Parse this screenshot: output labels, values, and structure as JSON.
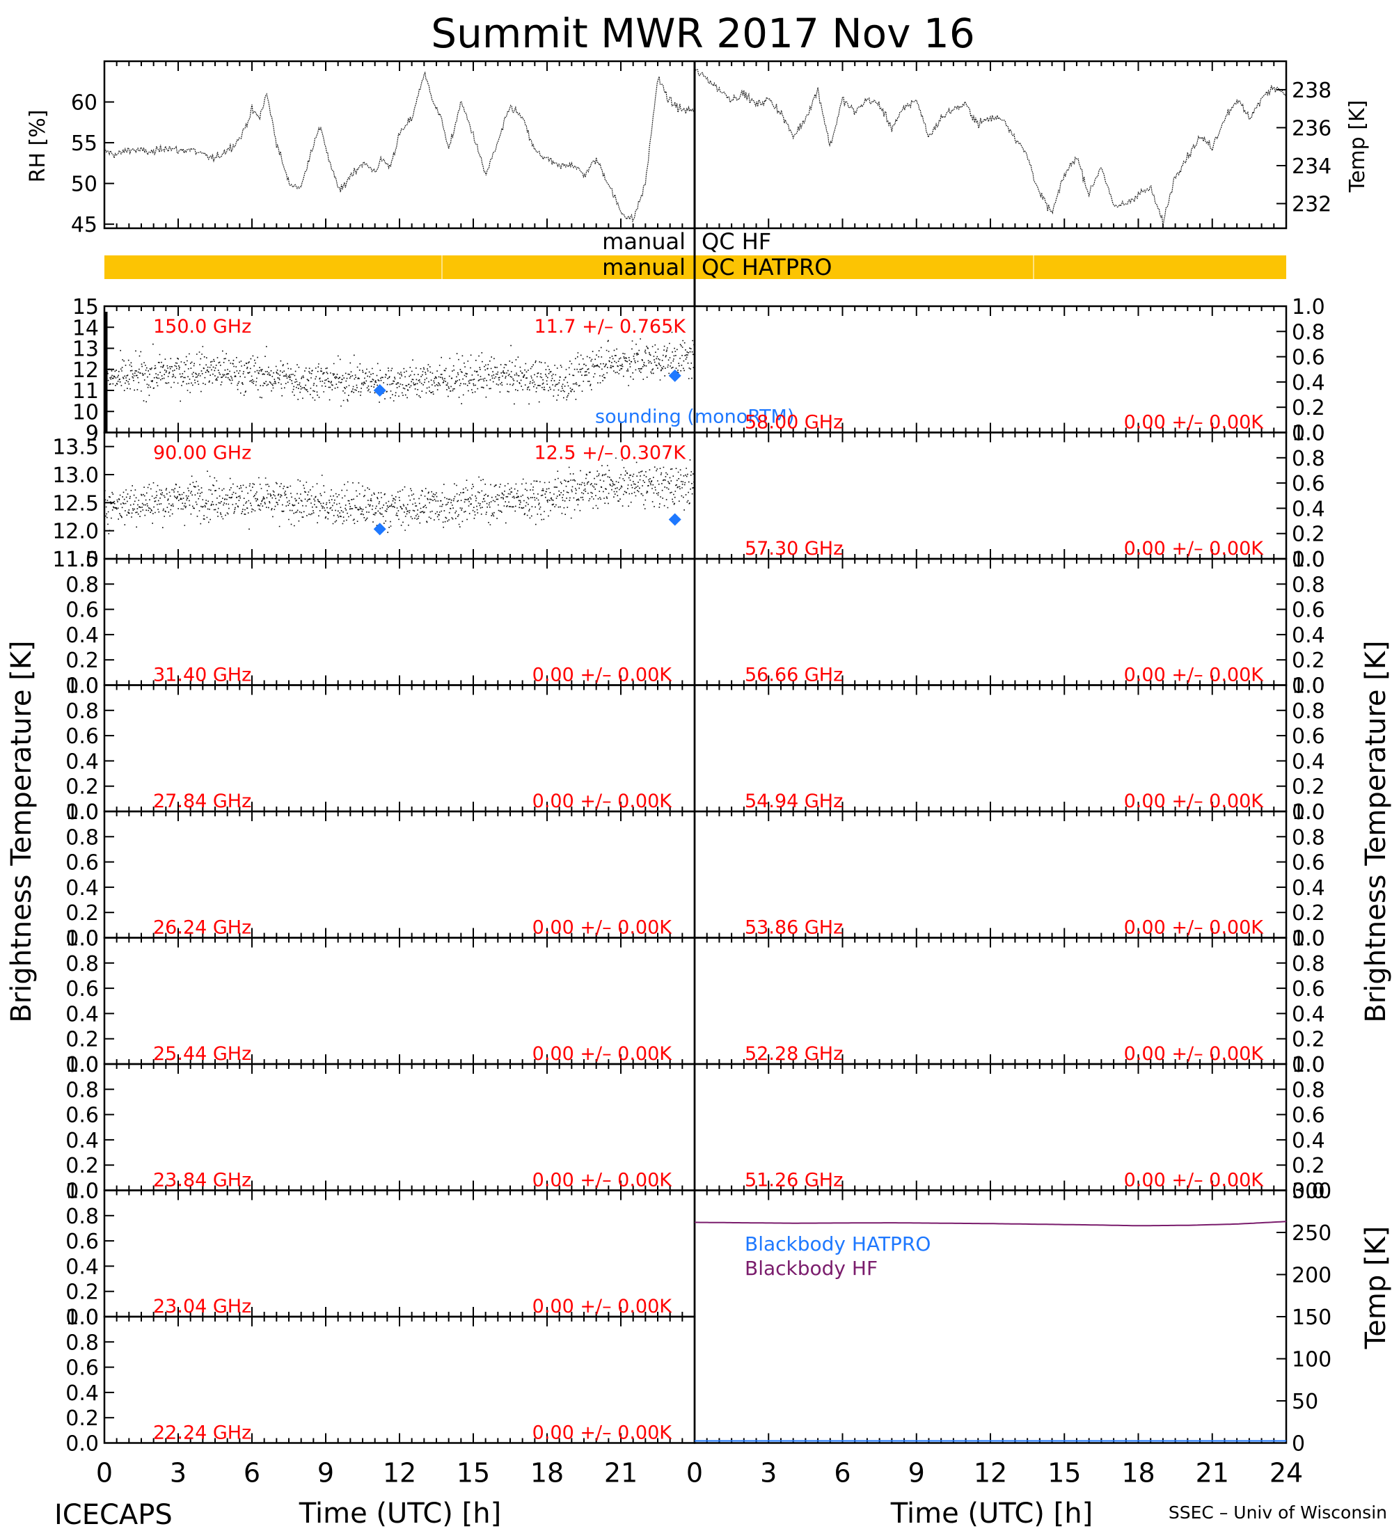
{
  "title": "Summit MWR 2017 Nov 16",
  "footer": {
    "left": "ICECAPS",
    "right": "SSEC – Univ of Wisconsin",
    "xlabel_left": "Time (UTC) [h]",
    "xlabel_right": "Time (UTC) [h]"
  },
  "colors": {
    "axis": "#000000",
    "label_red": "#ff0000",
    "sounding_blue": "#1e78ff",
    "qc_bar": "#fcc403",
    "blackbody_hatpro": "#1e78ff",
    "blackbody_hf": "#7a1c6c"
  },
  "qc": {
    "hf_label_left": "manual",
    "hf_label_right": "QC HF",
    "hatpro_label_left": "manual",
    "hatpro_label_right": "QC HATPRO"
  },
  "chart_data": {
    "type": "line",
    "x_ticks": [
      0,
      3,
      6,
      9,
      12,
      15,
      18,
      21,
      24
    ],
    "x_tick_labels_left": [
      "0",
      "3",
      "6",
      "9",
      "12",
      "15",
      "18",
      "21"
    ],
    "x_tick_labels_right": [
      "0",
      "3",
      "6",
      "9",
      "12",
      "15",
      "18",
      "21",
      "24"
    ],
    "xlim": [
      0,
      24
    ],
    "met": {
      "rh_ylabel": "RH [%]",
      "rh_ylim": [
        44.5,
        65
      ],
      "rh_ticks": [
        "45",
        "50",
        "55",
        "60"
      ],
      "rh_x": [
        0,
        0.5,
        1,
        1.5,
        2,
        2.5,
        3,
        3.5,
        4,
        4.5,
        5,
        5.3,
        5.6,
        6,
        6.3,
        6.6,
        7,
        7.5,
        8,
        8.4,
        8.8,
        9.2,
        9.6,
        10,
        10.5,
        11,
        11.3,
        11.6,
        12,
        12.5,
        13,
        13.4,
        13.8,
        14,
        14.5,
        15,
        15.5,
        16,
        16.5,
        17,
        17.5,
        18,
        18.5,
        19,
        19.5,
        20,
        20.5,
        21,
        21.5,
        22,
        22.5,
        23,
        23.5
      ],
      "rh_y": [
        54,
        53.5,
        54.2,
        54,
        53.8,
        54.5,
        54,
        54.2,
        53.5,
        53,
        54.2,
        54.8,
        56,
        59,
        58,
        61,
        55,
        50,
        49.5,
        54,
        57,
        52,
        49,
        51,
        52.5,
        51.5,
        53,
        52,
        56,
        58,
        63.5,
        60,
        57,
        54,
        60,
        56,
        51,
        55,
        59.5,
        58,
        54,
        53,
        52,
        52.5,
        51,
        53,
        50,
        46.5,
        45.5,
        50,
        63,
        60,
        59
      ],
      "temp_ylabel": "Temp [K]",
      "temp_ylim": [
        230.7,
        239.5
      ],
      "temp_ticks": [
        "232",
        "234",
        "236",
        "238"
      ],
      "temp_x": [
        0,
        0.5,
        1,
        1.5,
        2,
        2.5,
        3,
        3.5,
        4,
        4.5,
        5,
        5.5,
        6,
        6.5,
        7,
        7.5,
        8,
        8.5,
        9,
        9.5,
        10,
        10.5,
        11,
        11.5,
        12,
        12.5,
        13,
        13.5,
        14,
        14.5,
        15,
        15.5,
        16,
        16.5,
        17,
        17.5,
        18,
        18.5,
        19,
        19.5,
        20,
        20.5,
        21,
        21.5,
        22,
        22.5,
        23,
        23.5,
        24
      ],
      "temp_y": [
        239,
        238.6,
        238,
        237.5,
        237.8,
        237.2,
        237.5,
        236.8,
        235.5,
        236.5,
        238,
        235,
        237.5,
        236.8,
        237.5,
        237.2,
        236,
        237,
        237.5,
        235.5,
        236.5,
        237,
        237.2,
        236.2,
        236.5,
        236.5,
        235.5,
        234.5,
        232.5,
        231.5,
        233.5,
        234.5,
        232.5,
        234,
        231.8,
        232,
        232.5,
        232.8,
        231,
        233.5,
        234.5,
        235.5,
        235,
        236.5,
        237.5,
        236.5,
        237.5,
        238.2,
        237.8
      ]
    },
    "ticks_0_1": [
      "0.0",
      "0.2",
      "0.4",
      "0.6",
      "0.8",
      "1.0"
    ],
    "left_panels": [
      {
        "freq": "150.0 GHz",
        "stat": "11.7 +/– 0.765K",
        "ylim": [
          9,
          15
        ],
        "ticks": [
          "9",
          "10",
          "11",
          "12",
          "13",
          "14",
          "15"
        ],
        "mean": 11.7,
        "std": 0.765,
        "drift": [
          [
            0,
            11.5
          ],
          [
            4,
            12.0
          ],
          [
            8,
            11.5
          ],
          [
            12,
            11.4
          ],
          [
            16,
            11.7
          ],
          [
            19,
            11.4
          ],
          [
            20,
            12.3
          ],
          [
            24,
            12.5
          ]
        ],
        "sounding": [
          {
            "x": 11.2,
            "y": 11.0
          },
          {
            "x": 23.2,
            "y": 11.7
          }
        ],
        "sounding_label": "sounding (monoRTM)"
      },
      {
        "freq": "90.00 GHz",
        "stat": "12.5 +/– 0.307K",
        "ylim": [
          11.5,
          13.75
        ],
        "ticks": [
          "11.5",
          "12.0",
          "12.5",
          "13.0",
          "13.5"
        ],
        "mean": 12.5,
        "std": 0.307,
        "drift": [
          [
            0,
            12.45
          ],
          [
            4,
            12.6
          ],
          [
            8,
            12.5
          ],
          [
            12,
            12.4
          ],
          [
            16,
            12.55
          ],
          [
            18,
            12.6
          ],
          [
            20,
            12.8
          ],
          [
            24,
            12.8
          ]
        ],
        "sounding": [
          {
            "x": 11.2,
            "y": 12.03
          },
          {
            "x": 23.2,
            "y": 12.2
          }
        ]
      },
      {
        "freq": "31.40 GHz",
        "stat": "0.00 +/– 0.00K"
      },
      {
        "freq": "27.84 GHz",
        "stat": "0.00 +/– 0.00K"
      },
      {
        "freq": "26.24 GHz",
        "stat": "0.00 +/– 0.00K"
      },
      {
        "freq": "25.44 GHz",
        "stat": "0.00 +/– 0.00K"
      },
      {
        "freq": "23.84 GHz",
        "stat": "0.00 +/– 0.00K"
      },
      {
        "freq": "23.04 GHz",
        "stat": "0.00 +/– 0.00K"
      },
      {
        "freq": "22.24 GHz",
        "stat": "0.00 +/– 0.00K"
      }
    ],
    "right_panels": [
      {
        "freq": "58.00 GHz",
        "stat": "0.00 +/– 0.00K"
      },
      {
        "freq": "57.30 GHz",
        "stat": "0.00 +/– 0.00K"
      },
      {
        "freq": "56.66 GHz",
        "stat": "0.00 +/– 0.00K"
      },
      {
        "freq": "54.94 GHz",
        "stat": "0.00 +/– 0.00K"
      },
      {
        "freq": "53.86 GHz",
        "stat": "0.00 +/– 0.00K"
      },
      {
        "freq": "52.28 GHz",
        "stat": "0.00 +/– 0.00K"
      },
      {
        "freq": "51.26 GHz",
        "stat": "0.00 +/– 0.00K"
      }
    ],
    "ylabel_bt": "Brightness Temperature [K]",
    "blackbody": {
      "ylabel": "Temp [K]",
      "ylim": [
        0,
        300
      ],
      "ticks": [
        "0",
        "50",
        "100",
        "150",
        "200",
        "250",
        "300"
      ],
      "legend": [
        "Blackbody HATPRO",
        "Blackbody HF"
      ],
      "hf_x": [
        0,
        4,
        8,
        12,
        16,
        18,
        20,
        22,
        24
      ],
      "hf_y": [
        262,
        261,
        261.5,
        260.5,
        259,
        258,
        258.5,
        260,
        263
      ],
      "hatpro_x": [
        0,
        24
      ],
      "hatpro_y": [
        0,
        0
      ]
    }
  }
}
